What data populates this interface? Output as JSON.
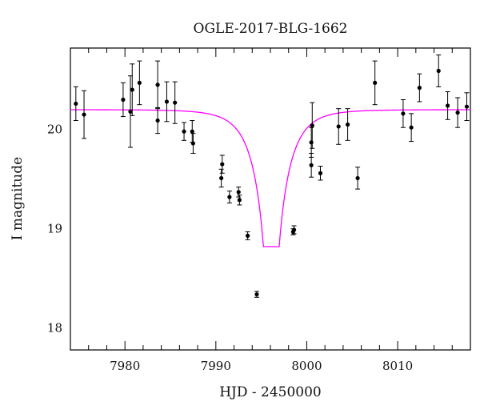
{
  "chart_data": {
    "type": "scatter",
    "title": "OGLE-2017-BLG-1662",
    "xlabel": "HJD - 2450000",
    "ylabel": "I magnitude",
    "xlim": [
      7974,
      8018
    ],
    "ylim": [
      20.82,
      17.78
    ],
    "y_inverted": true,
    "x_ticks": [
      7980,
      7990,
      8000,
      8010
    ],
    "y_ticks": [
      18,
      19,
      20
    ],
    "grid": false,
    "colors": {
      "points": "#000000",
      "model": "#ff00ff",
      "axes": "#000000"
    },
    "series": [
      {
        "points": [
          {
            "x": 7974.6,
            "y": 20.26,
            "err": 0.17
          },
          {
            "x": 7975.5,
            "y": 20.15,
            "err": 0.24
          },
          {
            "x": 7979.8,
            "y": 20.3,
            "err": 0.17
          },
          {
            "x": 7980.6,
            "y": 20.18,
            "err": 0.36
          },
          {
            "x": 7980.8,
            "y": 20.4,
            "err": 0.26
          },
          {
            "x": 7981.6,
            "y": 20.47,
            "err": 0.22
          },
          {
            "x": 7983.6,
            "y": 20.09,
            "err": 0.13
          },
          {
            "x": 7983.6,
            "y": 20.45,
            "err": 0.24
          },
          {
            "x": 7984.6,
            "y": 20.28,
            "err": 0.2
          },
          {
            "x": 7985.5,
            "y": 20.27,
            "err": 0.21
          },
          {
            "x": 7986.5,
            "y": 19.98,
            "err": 0.09
          },
          {
            "x": 7987.4,
            "y": 19.98,
            "err": 0.11
          },
          {
            "x": 7987.5,
            "y": 19.86,
            "err": 0.1
          },
          {
            "x": 7990.6,
            "y": 19.51,
            "err": 0.09
          },
          {
            "x": 7990.7,
            "y": 19.65,
            "err": 0.09
          },
          {
            "x": 7991.5,
            "y": 19.32,
            "err": 0.06
          },
          {
            "x": 7992.5,
            "y": 19.37,
            "err": 0.05
          },
          {
            "x": 7992.6,
            "y": 19.29,
            "err": 0.05
          },
          {
            "x": 7993.5,
            "y": 18.93,
            "err": 0.04
          },
          {
            "x": 7994.5,
            "y": 18.34,
            "err": 0.03
          },
          {
            "x": 7998.5,
            "y": 18.97,
            "err": 0.03
          },
          {
            "x": 7998.6,
            "y": 18.99,
            "err": 0.04
          },
          {
            "x": 8000.5,
            "y": 19.64,
            "err": 0.12
          },
          {
            "x": 8000.5,
            "y": 19.87,
            "err": 0.15
          },
          {
            "x": 8000.6,
            "y": 20.04,
            "err": 0.23
          },
          {
            "x": 8001.5,
            "y": 19.56,
            "err": 0.07
          },
          {
            "x": 8003.5,
            "y": 20.03,
            "err": 0.18
          },
          {
            "x": 8004.5,
            "y": 20.05,
            "err": 0.16
          },
          {
            "x": 8005.6,
            "y": 19.51,
            "err": 0.11
          },
          {
            "x": 8007.5,
            "y": 20.47,
            "err": 0.22
          },
          {
            "x": 8010.6,
            "y": 20.16,
            "err": 0.14
          },
          {
            "x": 8011.5,
            "y": 20.02,
            "err": 0.14
          },
          {
            "x": 8012.4,
            "y": 20.42,
            "err": 0.14
          },
          {
            "x": 8014.5,
            "y": 20.59,
            "err": 0.16
          },
          {
            "x": 8015.5,
            "y": 20.24,
            "err": 0.14
          },
          {
            "x": 8016.6,
            "y": 20.17,
            "err": 0.15
          },
          {
            "x": 8017.6,
            "y": 20.23,
            "err": 0.14
          }
        ]
      },
      {
        "model": "point-lens",
        "t0": 7996.1,
        "tE": 3.0,
        "u0": 0.01,
        "baseline_mag": 20.2
      }
    ]
  }
}
